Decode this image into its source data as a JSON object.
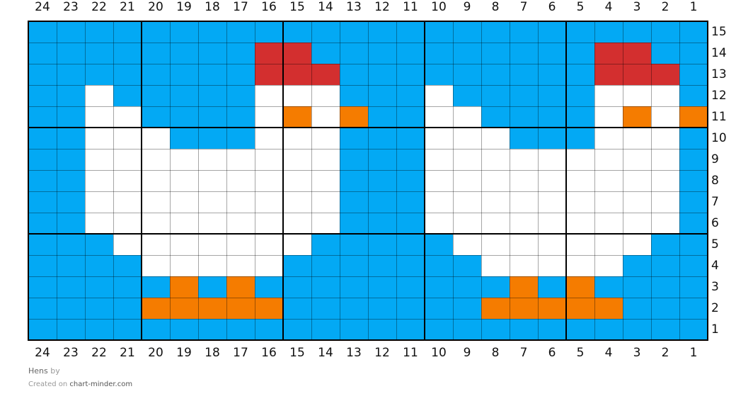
{
  "chart": {
    "columns": [
      24,
      23,
      22,
      21,
      20,
      19,
      18,
      17,
      16,
      15,
      14,
      13,
      12,
      11,
      10,
      9,
      8,
      7,
      6,
      5,
      4,
      3,
      2,
      1
    ],
    "row_numbers": [
      15,
      14,
      13,
      12,
      11,
      10,
      9,
      8,
      7,
      6,
      5,
      4,
      3,
      2,
      1
    ],
    "palette": {
      "B": "#03A9F4",
      "W": "#FFFFFF",
      "R": "#D32F2F",
      "O": "#F57C00"
    },
    "color_names": {
      "B": "blue",
      "W": "white",
      "R": "red",
      "O": "orange"
    },
    "rows": [
      "BBBBBBBBBBBBBBBBBBBBBBBB",
      "BBBBBBBBRRBBBBBBBBBBRRBB",
      "BBBBBBBBRRRBBBBBBBBBRRRB",
      "BBWBBBBBWWWBBBWBBBBBWWWB",
      "BBWWBBBBWOWOBBWWBBBBWOWO",
      "BBWWWBBBWWWBBBWWWBBBWWWB",
      "BBWWWWWWWWWBBBWWWWWWWWWB",
      "BBWWWWWWWWWBBBWWWWWWWWWB",
      "BBWWWWWWWWWBBBWWWWWWWWWB",
      "BBWWWWWWWWWBBBWWWWWWWWWB",
      "BBBWWWWWWWBBBBBWWWWWWWBB",
      "BBBBWWWWWBBBBBBBWWWWWBBB",
      "BBBBBOBOBBBBBBBBBOBOBBBB",
      "BBBBOOOOOBBBBBBBOOOOOBBB",
      "BBBBBBBBBBBBBBBBBBBBBBBB"
    ]
  },
  "footer": {
    "title": "Hens",
    "by": "by",
    "created_on": "Created on",
    "site": "chart-minder.com"
  }
}
